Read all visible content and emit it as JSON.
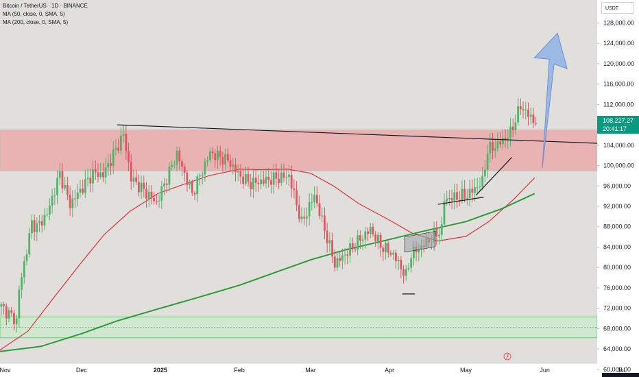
{
  "legend": {
    "symbol": "Bitcoin / TetherUS · 1D · BINANCE",
    "ma50": "MA (50, close, 0, SMA, 5)",
    "ma200": "MA (200, close, 0, SMA, 5)"
  },
  "currency_label": "USDT",
  "last_price": {
    "value": "108,227.27",
    "countdown": "20:41:17"
  },
  "colors": {
    "background": "#e0dfdc",
    "up": "#53b36a",
    "down": "#e5545f",
    "ma50": "#e5303a",
    "ma200": "#2c9a37",
    "resistance_zone": "#eab3b3",
    "support_zone": "#cfe8cf",
    "arrow": "#8fb2e6",
    "last_price_tag": "#089981"
  },
  "chart_data": {
    "type": "candlestick",
    "title": "Bitcoin / TetherUS · 1D · BINANCE",
    "x": {
      "tick_labels": [
        "Nov",
        "Dec",
        "2025",
        "Feb",
        "Mar",
        "Apr",
        "May",
        "Jun",
        "Jul"
      ],
      "tick_dates": [
        "2024-11-01",
        "2024-12-01",
        "2025-01-01",
        "2025-02-01",
        "2025-03-01",
        "2025-04-01",
        "2025-05-01",
        "2025-06-01",
        "2025-07-01"
      ]
    },
    "y": {
      "tick_labels": [
        "60,000.00",
        "64,000.00",
        "68,000.00",
        "72,000.00",
        "76,000.00",
        "80,000.00",
        "84,000.00",
        "88,000.00",
        "92,000.00",
        "96,000.00",
        "100,000.00",
        "104,000.00",
        "108,000.00",
        "112,000.00",
        "116,000.00",
        "120,000.00",
        "124,000.00",
        "128,000.00"
      ],
      "ylim": [
        58500,
        132500
      ],
      "unit": "USDT"
    },
    "price_path": {
      "dates": [
        "2024-10-30",
        "2024-11-05",
        "2024-11-06",
        "2024-11-11",
        "2024-11-13",
        "2024-11-17",
        "2024-11-22",
        "2024-11-26",
        "2024-12-05",
        "2024-12-09",
        "2024-12-17",
        "2024-12-20",
        "2024-12-30",
        "2025-01-07",
        "2025-01-13",
        "2025-01-20",
        "2025-01-27",
        "2025-02-01",
        "2025-02-05",
        "2025-02-20",
        "2025-02-25",
        "2025-03-02",
        "2025-03-10",
        "2025-03-13",
        "2025-03-24",
        "2025-03-28",
        "2025-04-02",
        "2025-04-07",
        "2025-04-09",
        "2025-04-13",
        "2025-04-21",
        "2025-04-22",
        "2025-05-01",
        "2025-05-07",
        "2025-05-09",
        "2025-05-13",
        "2025-05-18",
        "2025-05-22",
        "2025-05-26",
        "2025-05-28"
      ],
      "close": [
        72300,
        69500,
        75600,
        88700,
        87900,
        90500,
        98400,
        92400,
        98500,
        98200,
        106100,
        97500,
        92700,
        102300,
        94500,
        102500,
        101000,
        97800,
        96500,
        98000,
        88700,
        94200,
        80700,
        82100,
        87500,
        84300,
        82500,
        78300,
        82600,
        84100,
        87500,
        93400,
        94200,
        96800,
        103000,
        104100,
        106400,
        111700,
        109400,
        108227.27
      ]
    },
    "ma_series": [
      {
        "name": "MA (50, close, 0, SMA, 5)",
        "dates": [
          "2024-10-30",
          "2024-11-10",
          "2024-11-20",
          "2024-12-01",
          "2024-12-10",
          "2024-12-20",
          "2024-12-31",
          "2025-01-10",
          "2025-01-20",
          "2025-02-01",
          "2025-02-10",
          "2025-02-20",
          "2025-03-01",
          "2025-03-10",
          "2025-03-20",
          "2025-04-01",
          "2025-04-10",
          "2025-04-20",
          "2025-05-01",
          "2025-05-10",
          "2025-05-20",
          "2025-05-28"
        ],
        "values": [
          63800,
          67500,
          74000,
          81000,
          86500,
          91000,
          94500,
          96300,
          98000,
          99300,
          99200,
          99300,
          98500,
          96000,
          92500,
          89300,
          86700,
          85200,
          86100,
          89000,
          93500,
          97600
        ]
      },
      {
        "name": "MA (200, close, 0, SMA, 5)",
        "dates": [
          "2024-10-30",
          "2024-11-15",
          "2024-12-01",
          "2024-12-15",
          "2025-01-01",
          "2025-01-15",
          "2025-02-01",
          "2025-02-15",
          "2025-03-01",
          "2025-03-15",
          "2025-04-01",
          "2025-04-15",
          "2025-05-01",
          "2025-05-15",
          "2025-05-28"
        ],
        "values": [
          63500,
          64500,
          67000,
          69500,
          72000,
          74000,
          76500,
          79000,
          81500,
          83500,
          85500,
          87200,
          89000,
          91500,
          94500
        ]
      }
    ],
    "annotations": [
      {
        "type": "zone",
        "label": "resistance zone",
        "y1": 99000,
        "y2": 107000
      },
      {
        "type": "zone",
        "label": "support zone",
        "y1": 66200,
        "y2": 70300
      },
      {
        "type": "trendline",
        "from": [
          "2024-12-15",
          108000
        ],
        "to": [
          "2025-07-01",
          104200
        ]
      },
      {
        "type": "trendline",
        "from": [
          "2025-04-20",
          92400
        ],
        "to": [
          "2025-05-08",
          93800
        ]
      },
      {
        "type": "trendline",
        "from": [
          "2025-05-05",
          94200
        ],
        "to": [
          "2025-05-19",
          101600
        ]
      },
      {
        "type": "hline",
        "from": [
          "2025-04-06",
          74800
        ],
        "to": [
          "2025-04-11",
          74800
        ]
      },
      {
        "type": "flag",
        "from": [
          "2025-04-07",
          83000
        ],
        "to": [
          "2025-04-19",
          86000
        ]
      },
      {
        "type": "arrow",
        "label": "projected upside",
        "from": [
          "2025-05-31",
          99500
        ],
        "to": [
          "2025-06-06",
          126000
        ]
      }
    ],
    "grid": false,
    "legend_position": "top-left"
  }
}
